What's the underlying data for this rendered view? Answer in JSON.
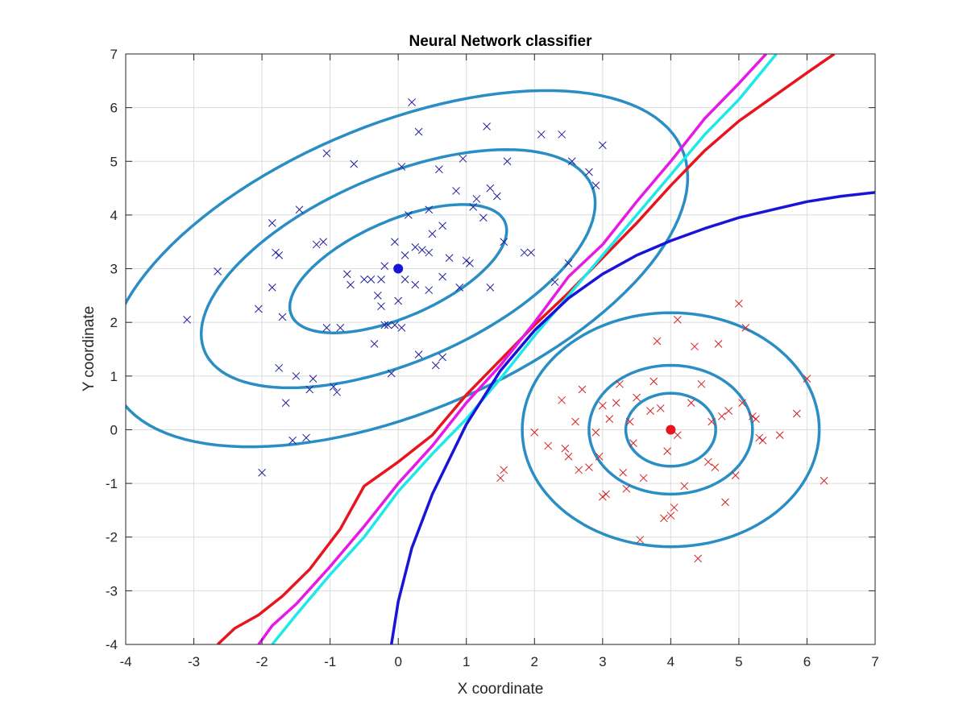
{
  "chart_data": {
    "type": "scatter",
    "title": "Neural Network classifier",
    "xlabel": "X coordinate",
    "ylabel": "Y coordinate",
    "xlim": [
      -4,
      7
    ],
    "ylim": [
      -4,
      7
    ],
    "xticks": [
      -4,
      -3,
      -2,
      -1,
      0,
      1,
      2,
      3,
      4,
      5,
      6,
      7
    ],
    "yticks": [
      -4,
      -3,
      -2,
      -1,
      0,
      1,
      2,
      3,
      4,
      5,
      6,
      7
    ],
    "grid": true,
    "colors": {
      "class1_points": "#1f1f9e",
      "class2_points": "#d62020",
      "contours": "#2a8ec4",
      "boundary_blue": "#1a14d8",
      "boundary_red": "#e8141e",
      "boundary_magenta": "#e619e6",
      "boundary_cyan": "#1ee8e8"
    },
    "class1": {
      "mean": [
        0,
        3
      ],
      "points": [
        [
          -3.1,
          2.05
        ],
        [
          -2.65,
          2.95
        ],
        [
          -2.05,
          2.25
        ],
        [
          -2.0,
          -0.8
        ],
        [
          -1.85,
          2.65
        ],
        [
          -1.85,
          3.85
        ],
        [
          -1.8,
          3.3
        ],
        [
          -1.75,
          3.25
        ],
        [
          -1.75,
          1.15
        ],
        [
          -1.7,
          2.1
        ],
        [
          -1.65,
          0.5
        ],
        [
          -1.55,
          -0.2
        ],
        [
          -1.5,
          1.0
        ],
        [
          -1.45,
          4.1
        ],
        [
          -1.35,
          -0.15
        ],
        [
          -1.3,
          0.75
        ],
        [
          -1.25,
          0.95
        ],
        [
          -1.2,
          3.45
        ],
        [
          -1.1,
          3.5
        ],
        [
          -1.05,
          1.9
        ],
        [
          -1.05,
          5.15
        ],
        [
          -0.95,
          0.8
        ],
        [
          -0.9,
          0.7
        ],
        [
          -0.85,
          1.9
        ],
        [
          -0.75,
          2.9
        ],
        [
          -0.7,
          2.7
        ],
        [
          -0.65,
          4.95
        ],
        [
          -0.5,
          2.8
        ],
        [
          -0.4,
          2.8
        ],
        [
          -0.35,
          1.6
        ],
        [
          -0.3,
          2.5
        ],
        [
          -0.25,
          2.3
        ],
        [
          -0.25,
          2.8
        ],
        [
          -0.2,
          3.05
        ],
        [
          -0.2,
          1.95
        ],
        [
          -0.15,
          1.95
        ],
        [
          -0.1,
          1.05
        ],
        [
          -0.05,
          1.95
        ],
        [
          -0.05,
          3.5
        ],
        [
          0.0,
          2.4
        ],
        [
          0.05,
          1.9
        ],
        [
          0.05,
          4.9
        ],
        [
          0.1,
          2.8
        ],
        [
          0.1,
          3.25
        ],
        [
          0.15,
          4.0
        ],
        [
          0.2,
          6.1
        ],
        [
          0.25,
          3.4
        ],
        [
          0.25,
          2.7
        ],
        [
          0.3,
          5.55
        ],
        [
          0.3,
          1.4
        ],
        [
          0.35,
          3.35
        ],
        [
          0.45,
          3.3
        ],
        [
          0.45,
          2.6
        ],
        [
          0.45,
          4.1
        ],
        [
          0.5,
          3.65
        ],
        [
          0.55,
          1.2
        ],
        [
          0.6,
          4.85
        ],
        [
          0.65,
          2.85
        ],
        [
          0.65,
          3.8
        ],
        [
          0.65,
          1.35
        ],
        [
          0.75,
          3.2
        ],
        [
          0.85,
          4.45
        ],
        [
          0.9,
          2.65
        ],
        [
          0.95,
          5.05
        ],
        [
          1.0,
          3.15
        ],
        [
          1.05,
          3.1
        ],
        [
          1.1,
          4.15
        ],
        [
          1.15,
          4.3
        ],
        [
          1.25,
          3.95
        ],
        [
          1.3,
          5.65
        ],
        [
          1.35,
          4.5
        ],
        [
          1.35,
          2.65
        ],
        [
          1.45,
          4.35
        ],
        [
          1.55,
          3.5
        ],
        [
          1.6,
          5.0
        ],
        [
          1.85,
          3.3
        ],
        [
          1.95,
          3.3
        ],
        [
          2.1,
          5.5
        ],
        [
          2.3,
          2.75
        ],
        [
          2.4,
          5.5
        ],
        [
          2.5,
          3.1
        ],
        [
          2.55,
          5.0
        ],
        [
          2.8,
          4.8
        ],
        [
          2.9,
          4.55
        ],
        [
          3.0,
          5.3
        ]
      ]
    },
    "class2": {
      "mean": [
        4,
        0
      ],
      "points": [
        [
          1.5,
          -0.9
        ],
        [
          1.55,
          -0.75
        ],
        [
          2.0,
          -0.05
        ],
        [
          2.2,
          -0.3
        ],
        [
          2.4,
          0.55
        ],
        [
          2.45,
          -0.35
        ],
        [
          2.5,
          -0.5
        ],
        [
          2.6,
          0.15
        ],
        [
          2.65,
          -0.75
        ],
        [
          2.7,
          0.75
        ],
        [
          2.8,
          -0.7
        ],
        [
          2.9,
          -0.05
        ],
        [
          2.95,
          -0.5
        ],
        [
          3.0,
          -1.25
        ],
        [
          3.0,
          0.45
        ],
        [
          3.05,
          -1.2
        ],
        [
          3.1,
          0.2
        ],
        [
          3.2,
          0.5
        ],
        [
          3.25,
          0.85
        ],
        [
          3.3,
          -0.8
        ],
        [
          3.35,
          -1.1
        ],
        [
          3.4,
          0.15
        ],
        [
          3.45,
          -0.25
        ],
        [
          3.5,
          0.6
        ],
        [
          3.55,
          -2.05
        ],
        [
          3.6,
          -0.9
        ],
        [
          3.7,
          0.35
        ],
        [
          3.75,
          0.9
        ],
        [
          3.8,
          1.65
        ],
        [
          3.85,
          0.4
        ],
        [
          3.9,
          -1.65
        ],
        [
          3.95,
          -0.4
        ],
        [
          4.0,
          -1.6
        ],
        [
          4.05,
          -1.45
        ],
        [
          4.1,
          -0.1
        ],
        [
          4.1,
          2.05
        ],
        [
          4.2,
          -1.05
        ],
        [
          4.3,
          0.5
        ],
        [
          4.35,
          1.55
        ],
        [
          4.4,
          -2.4
        ],
        [
          4.45,
          0.85
        ],
        [
          4.55,
          -0.6
        ],
        [
          4.6,
          0.15
        ],
        [
          4.65,
          -0.7
        ],
        [
          4.7,
          1.6
        ],
        [
          4.75,
          0.25
        ],
        [
          4.8,
          -1.35
        ],
        [
          4.85,
          0.35
        ],
        [
          4.95,
          -0.85
        ],
        [
          5.0,
          2.35
        ],
        [
          5.05,
          0.5
        ],
        [
          5.1,
          1.9
        ],
        [
          5.2,
          0.25
        ],
        [
          5.25,
          0.2
        ],
        [
          5.3,
          -0.15
        ],
        [
          5.35,
          -0.2
        ],
        [
          5.6,
          -0.1
        ],
        [
          5.85,
          0.3
        ],
        [
          6.0,
          0.95
        ],
        [
          6.25,
          -0.95
        ]
      ]
    },
    "contours": [
      {
        "group": "class1",
        "center": [
          0,
          3
        ],
        "semi_axes": [
          1.8,
          0.85
        ],
        "angle_deg": 32
      },
      {
        "group": "class1",
        "center": [
          0,
          3
        ],
        "semi_axes": [
          3.25,
          1.65
        ],
        "angle_deg": 32
      },
      {
        "group": "class1",
        "center": [
          0,
          3
        ],
        "semi_axes": [
          4.75,
          2.55
        ],
        "angle_deg": 32
      },
      {
        "group": "class2",
        "center": [
          4,
          0
        ],
        "semi_axes": [
          0.66,
          0.68
        ],
        "angle_deg": 0
      },
      {
        "group": "class2",
        "center": [
          4,
          0
        ],
        "semi_axes": [
          1.2,
          1.2
        ],
        "angle_deg": 0
      },
      {
        "group": "class2",
        "center": [
          4,
          0
        ],
        "semi_axes": [
          2.18,
          2.18
        ],
        "angle_deg": 0
      }
    ],
    "boundaries": [
      {
        "color_key": "boundary_red",
        "points": [
          [
            -2.65,
            -4.0
          ],
          [
            -2.4,
            -3.7
          ],
          [
            -2.05,
            -3.45
          ],
          [
            -1.7,
            -3.1
          ],
          [
            -1.3,
            -2.6
          ],
          [
            -0.85,
            -1.85
          ],
          [
            -0.5,
            -1.05
          ],
          [
            0.0,
            -0.6
          ],
          [
            0.5,
            -0.1
          ],
          [
            1.0,
            0.65
          ],
          [
            1.5,
            1.3
          ],
          [
            2.0,
            1.95
          ],
          [
            2.5,
            2.55
          ],
          [
            3.0,
            3.2
          ],
          [
            3.5,
            3.85
          ],
          [
            4.0,
            4.55
          ],
          [
            4.5,
            5.2
          ],
          [
            5.0,
            5.75
          ],
          [
            5.5,
            6.2
          ],
          [
            6.0,
            6.65
          ],
          [
            6.4,
            7.0
          ]
        ]
      },
      {
        "color_key": "boundary_magenta",
        "points": [
          [
            -2.05,
            -4.0
          ],
          [
            -1.85,
            -3.65
          ],
          [
            -1.5,
            -3.25
          ],
          [
            -1.0,
            -2.55
          ],
          [
            -0.5,
            -1.8
          ],
          [
            0.0,
            -1.0
          ],
          [
            0.5,
            -0.3
          ],
          [
            1.0,
            0.5
          ],
          [
            1.5,
            1.2
          ],
          [
            2.0,
            2.0
          ],
          [
            2.5,
            2.85
          ],
          [
            3.0,
            3.45
          ],
          [
            3.5,
            4.25
          ],
          [
            4.0,
            5.0
          ],
          [
            4.5,
            5.8
          ],
          [
            5.0,
            6.45
          ],
          [
            5.4,
            7.0
          ]
        ]
      },
      {
        "color_key": "boundary_cyan",
        "points": [
          [
            -1.85,
            -4.0
          ],
          [
            -1.5,
            -3.45
          ],
          [
            -1.0,
            -2.7
          ],
          [
            -0.5,
            -2.0
          ],
          [
            0.0,
            -1.15
          ],
          [
            0.5,
            -0.45
          ],
          [
            1.0,
            0.2
          ],
          [
            1.5,
            0.95
          ],
          [
            2.0,
            1.75
          ],
          [
            2.5,
            2.5
          ],
          [
            3.0,
            3.25
          ],
          [
            3.5,
            4.0
          ],
          [
            4.0,
            4.75
          ],
          [
            4.5,
            5.5
          ],
          [
            5.0,
            6.15
          ],
          [
            5.55,
            7.0
          ]
        ]
      },
      {
        "color_key": "boundary_blue",
        "points": [
          [
            -0.1,
            -4.0
          ],
          [
            0.0,
            -3.2
          ],
          [
            0.2,
            -2.2
          ],
          [
            0.5,
            -1.2
          ],
          [
            1.0,
            0.1
          ],
          [
            1.5,
            1.1
          ],
          [
            2.0,
            1.85
          ],
          [
            2.5,
            2.45
          ],
          [
            3.0,
            2.9
          ],
          [
            3.5,
            3.25
          ],
          [
            4.0,
            3.52
          ],
          [
            4.5,
            3.75
          ],
          [
            5.0,
            3.95
          ],
          [
            5.5,
            4.1
          ],
          [
            6.0,
            4.25
          ],
          [
            6.5,
            4.35
          ],
          [
            7.0,
            4.42
          ]
        ]
      }
    ]
  }
}
